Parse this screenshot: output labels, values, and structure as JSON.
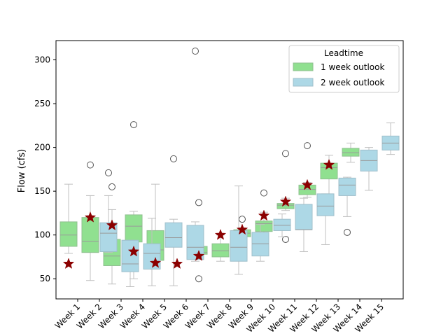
{
  "chart_data": {
    "type": "box",
    "ylabel": "Flow (cfs)",
    "ylim": [
      27,
      322
    ],
    "yticks": [
      50,
      100,
      150,
      200,
      250,
      300
    ],
    "categories": [
      "Week 1",
      "Week 2",
      "Week 3",
      "Week 4",
      "Week 5",
      "Week 6",
      "Week 7",
      "Week 8",
      "Week 9",
      "Week 10",
      "Week 11",
      "Week 12",
      "Week 13",
      "Week 14",
      "Week 15"
    ],
    "legend": {
      "title": "Leadtime",
      "placement": "top-right",
      "entries": [
        "1 week outlook",
        "2 week outlook"
      ]
    },
    "colors": {
      "one_week": "#90e090",
      "two_week": "#add8e6",
      "observed": "#8b0000",
      "whisker": "#c0c0c0",
      "median": "#9a9a9a"
    },
    "series": [
      {
        "name": "1 week outlook",
        "boxes": [
          {
            "category": "Week 1",
            "lo": 79,
            "q1": 87,
            "med": 100,
            "q3": 115,
            "hi": 158,
            "fliers": []
          },
          {
            "category": "Week 2",
            "lo": 48,
            "q1": 80,
            "med": 93,
            "q3": 120,
            "hi": 145,
            "fliers": [
              180
            ]
          },
          {
            "category": "Week 3",
            "lo": 44,
            "q1": 65,
            "med": 76,
            "q3": 95,
            "hi": 129,
            "fliers": [
              155
            ]
          },
          {
            "category": "Week 4",
            "lo": 50,
            "q1": 92,
            "med": 110,
            "q3": 123,
            "hi": 127,
            "fliers": [
              226
            ]
          },
          {
            "category": "Week 5",
            "lo": 62,
            "q1": 71,
            "med": 83,
            "q3": 105,
            "hi": 158,
            "fliers": []
          },
          {
            "category": "Week 7",
            "lo": 76,
            "q1": 78,
            "med": 80,
            "q3": 87,
            "hi": 87,
            "fliers": [
              50,
              105,
              137
            ]
          },
          {
            "category": "Week 8",
            "lo": 70,
            "q1": 75,
            "med": 82,
            "q3": 90,
            "hi": 100,
            "fliers": []
          },
          {
            "category": "Week 9",
            "lo": 95,
            "q1": 98,
            "med": 102,
            "q3": 106,
            "hi": 108,
            "fliers": [
              118
            ]
          },
          {
            "category": "Week 10",
            "lo": 99,
            "q1": 104,
            "med": 113,
            "q3": 116,
            "hi": 126,
            "fliers": [
              148
            ]
          },
          {
            "category": "Week 11",
            "lo": 128,
            "q1": 130,
            "med": 134,
            "q3": 136,
            "hi": 142,
            "fliers": [
              95,
              113,
              193
            ]
          },
          {
            "category": "Week 12",
            "lo": 143,
            "q1": 146,
            "med": 152,
            "q3": 157,
            "hi": 160,
            "fliers": [
              127,
              202
            ]
          },
          {
            "category": "Week 13",
            "lo": 146,
            "q1": 164,
            "med": 177,
            "q3": 182,
            "hi": 191,
            "fliers": []
          },
          {
            "category": "Week 14",
            "lo": 183,
            "q1": 190,
            "med": 194,
            "q3": 199,
            "hi": 205,
            "fliers": []
          }
        ]
      },
      {
        "name": "2 week outlook",
        "boxes": [
          {
            "category": "Week 2",
            "lo": 80,
            "q1": 81,
            "med": 102,
            "q3": 114,
            "hi": 145,
            "fliers": [
              171
            ]
          },
          {
            "category": "Week 3",
            "lo": 41,
            "q1": 58,
            "med": 67,
            "q3": 94,
            "hi": 94,
            "fliers": []
          },
          {
            "category": "Week 4",
            "lo": 42,
            "q1": 61,
            "med": 79,
            "q3": 90,
            "hi": 119,
            "fliers": []
          },
          {
            "category": "Week 5",
            "lo": 42,
            "q1": 86,
            "med": 97,
            "q3": 114,
            "hi": 118,
            "fliers": [
              187
            ]
          },
          {
            "category": "Week 6",
            "lo": 70,
            "q1": 72,
            "med": 86,
            "q3": 111,
            "hi": 115,
            "fliers": [
              310
            ]
          },
          {
            "category": "Week 8",
            "lo": 55,
            "q1": 70,
            "med": 86,
            "q3": 105,
            "hi": 156,
            "fliers": []
          },
          {
            "category": "Week 9",
            "lo": 70,
            "q1": 76,
            "med": 90,
            "q3": 103,
            "hi": 112,
            "fliers": []
          },
          {
            "category": "Week 10",
            "lo": 98,
            "q1": 105,
            "med": 111,
            "q3": 118,
            "hi": 124,
            "fliers": []
          },
          {
            "category": "Week 11",
            "lo": 81,
            "q1": 106,
            "med": 106,
            "q3": 135,
            "hi": 142,
            "fliers": []
          },
          {
            "category": "Week 12",
            "lo": 89,
            "q1": 122,
            "med": 133,
            "q3": 147,
            "hi": 147,
            "fliers": []
          },
          {
            "category": "Week 13",
            "lo": 121,
            "q1": 145,
            "med": 157,
            "q3": 165,
            "hi": 166,
            "fliers": [
              103
            ]
          },
          {
            "category": "Week 14",
            "lo": 151,
            "q1": 173,
            "med": 185,
            "q3": 197,
            "hi": 200,
            "fliers": []
          },
          {
            "category": "Week 15",
            "lo": 192,
            "q1": 197,
            "med": 205,
            "q3": 213,
            "hi": 228,
            "fliers": []
          }
        ]
      },
      {
        "markers": "observed",
        "points": [
          {
            "category": "Week 1",
            "y": 67
          },
          {
            "category": "Week 2",
            "y": 120
          },
          {
            "category": "Week 3",
            "y": 111
          },
          {
            "category": "Week 4",
            "y": 81
          },
          {
            "category": "Week 5",
            "y": 68
          },
          {
            "category": "Week 6",
            "y": 67
          },
          {
            "category": "Week 7",
            "y": 76
          },
          {
            "category": "Week 8",
            "y": 100
          },
          {
            "category": "Week 9",
            "y": 106
          },
          {
            "category": "Week 10",
            "y": 122
          },
          {
            "category": "Week 11",
            "y": 138
          },
          {
            "category": "Week 12",
            "y": 157
          },
          {
            "category": "Week 13",
            "y": 180
          }
        ]
      }
    ]
  }
}
